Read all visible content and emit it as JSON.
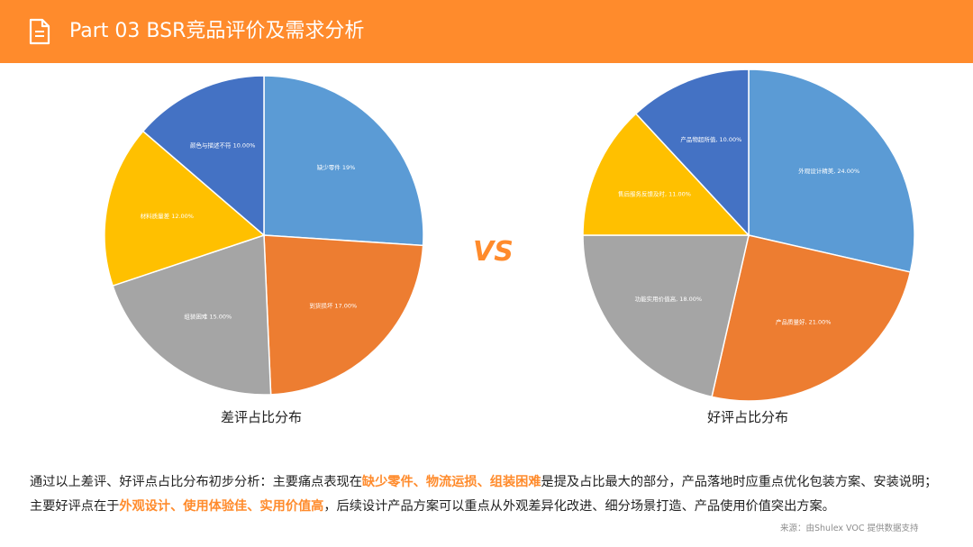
{
  "header": {
    "title": "Part 03  BSR竞品评价及需求分析",
    "icon": "document-icon"
  },
  "colors": {
    "accent": "#FF8B2C",
    "blue": "#5B9BD5",
    "orange": "#ED7D31",
    "gray": "#A5A5A5",
    "yellow": "#FFC000",
    "darkblue": "#4472C4"
  },
  "chart_data": [
    {
      "type": "pie",
      "title": "差评占比分布",
      "series": [
        {
          "name": "缺少零件",
          "value": 19,
          "label": "缺少零件 19%",
          "color": "#5B9BD5"
        },
        {
          "name": "到货损坏",
          "value": 17,
          "label": "到货损坏 17.00%",
          "color": "#ED7D31"
        },
        {
          "name": "组装困难",
          "value": 15,
          "label": "组装困难 15.00%",
          "color": "#A5A5A5"
        },
        {
          "name": "材料质量差",
          "value": 12,
          "label": "材料质量差 12.00%",
          "color": "#FFC000"
        },
        {
          "name": "颜色与描述不符",
          "value": 10,
          "label": "颜色与描述不符 10.00%",
          "color": "#4472C4"
        }
      ]
    },
    {
      "type": "pie",
      "title": "好评占比分布",
      "series": [
        {
          "name": "外观设计精美",
          "value": 24,
          "label": "外观设计精美, 24.00%",
          "color": "#5B9BD5"
        },
        {
          "name": "产品质量好",
          "value": 21,
          "label": "产品质量好, 21.00%",
          "color": "#ED7D31"
        },
        {
          "name": "功能实用价值高",
          "value": 18,
          "label": "功能实用价值高, 18.00%",
          "color": "#A5A5A5"
        },
        {
          "name": "售后服务反馈及时",
          "value": 11,
          "label": "售后服务反馈及时, 11.00%",
          "color": "#FFC000"
        },
        {
          "name": "产品物超所值",
          "value": 10,
          "label": "产品物超所值, 10.00%",
          "color": "#4472C4"
        }
      ]
    }
  ],
  "vs_text": "VS",
  "summary": {
    "line1_a": "通过以上差评、好评点占比分布初步分析：主要痛点表现在",
    "line1_hl": "缺少零件、物流运损、组装困难",
    "line1_b": "是提及占比最大的部分，产品落地时应重点优化包装方案、安装说明；主要好评点在于",
    "line2_hl": "外观设计、使用体验佳、实用价值高",
    "line2_b": "，后续设计产品方案可以重点从外观差异化改进、细分场景打造、产品使用价值突出方案。"
  },
  "source": "来源：由Shulex VOC 提供数据支持"
}
